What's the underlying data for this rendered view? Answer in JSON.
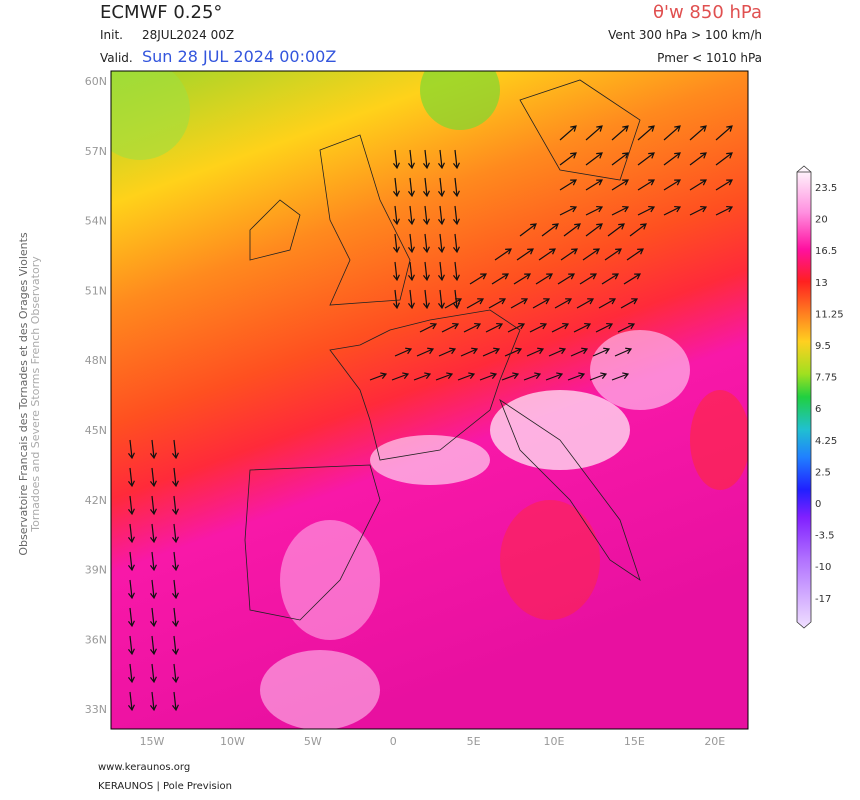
{
  "header": {
    "model": "ECMWF 0.25°",
    "init_label": "Init.",
    "init": "28JUL2024 00Z",
    "valid_label": "Valid.",
    "valid": "Sun 28 JUL 2024 00:00Z",
    "field": "θ'w 850 hPa",
    "wind": "Vent 300 hPa > 100 km/h",
    "pressure": "Pmer < 1010 hPa"
  },
  "side": {
    "line1": "Observatoire Francais des Tornades et des Orages Violents",
    "line2": "Tornadoes and Severe Storms French Observatory"
  },
  "map": {
    "lat_labels": [
      "60N",
      "57N",
      "54N",
      "51N",
      "48N",
      "45N",
      "42N",
      "39N",
      "36N",
      "33N"
    ],
    "lon_labels": [
      "15W",
      "10W",
      "5W",
      "0",
      "5E",
      "10E",
      "15E",
      "20E"
    ]
  },
  "colorbar": {
    "labels": [
      23.5,
      20,
      16.5,
      13,
      11.25,
      9.5,
      7.75,
      6,
      4.25,
      2.5,
      0,
      -3.5,
      -10,
      -17
    ]
  },
  "footer": {
    "site": "www.keraunos.org",
    "brand": "KERAUNOS | Pole Prevision"
  }
}
